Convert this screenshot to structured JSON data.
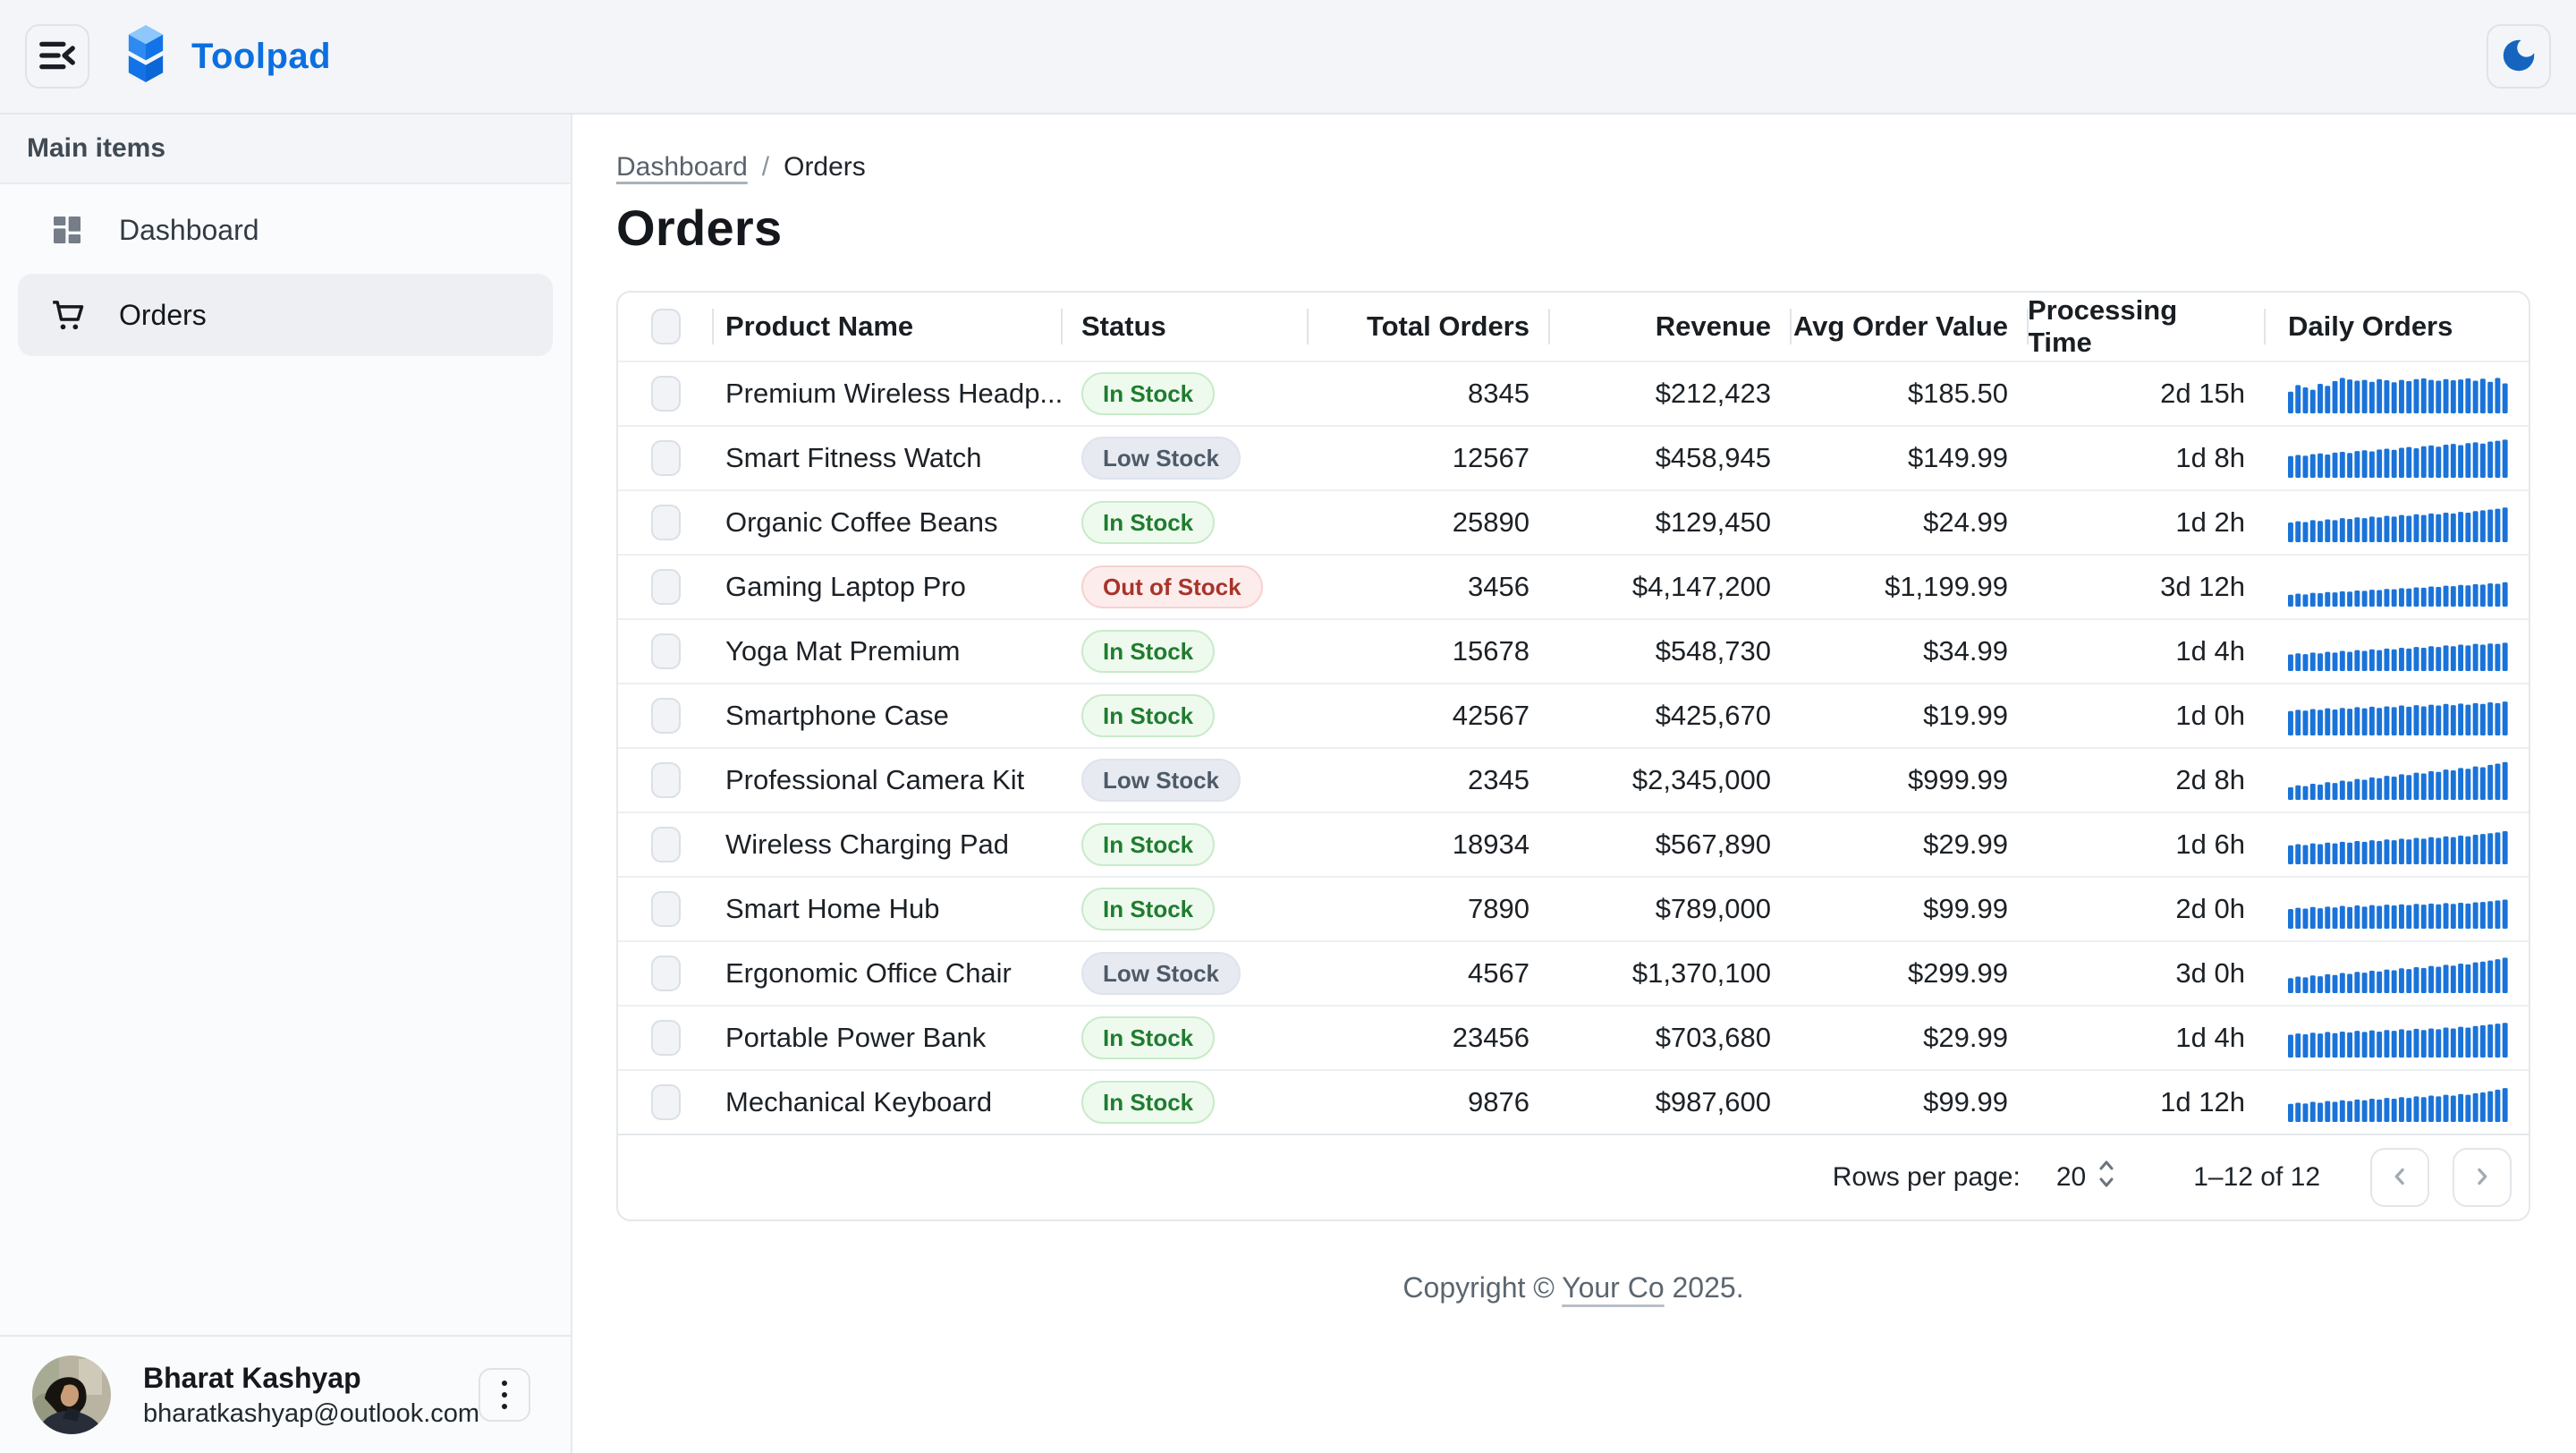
{
  "app": {
    "title": "Toolpad"
  },
  "header": {
    "menu_icon": "menu-collapse-icon",
    "theme_icon": "moon-icon"
  },
  "sidebar": {
    "section_label": "Main items",
    "items": [
      {
        "label": "Dashboard",
        "icon": "dashboard-icon",
        "selected": false
      },
      {
        "label": "Orders",
        "icon": "cart-icon",
        "selected": true
      }
    ],
    "user": {
      "name": "Bharat Kashyap",
      "email": "bharatkashyap@outlook.com"
    }
  },
  "breadcrumb": {
    "parent": "Dashboard",
    "separator": "/",
    "current": "Orders"
  },
  "page": {
    "title": "Orders"
  },
  "table": {
    "columns": [
      "Product Name",
      "Status",
      "Total Orders",
      "Revenue",
      "Avg Order Value",
      "Processing Time",
      "Daily Orders"
    ],
    "rows": [
      {
        "name": "Premium Wireless Headp...",
        "status": "In Stock",
        "status_variant": "success",
        "total_orders": "8345",
        "revenue": "$212,423",
        "avg_order_value": "$185.50",
        "processing_time": "2d 15h",
        "daily_orders": [
          55,
          72,
          66,
          60,
          75,
          70,
          82,
          90,
          86,
          83,
          85,
          80,
          87,
          84,
          79,
          85,
          82,
          87,
          89,
          85,
          83,
          87,
          84,
          86,
          89,
          83,
          88,
          80,
          90,
          76
        ]
      },
      {
        "name": "Smart Fitness Watch",
        "status": "Low Stock",
        "status_variant": "neutral",
        "total_orders": "12567",
        "revenue": "$458,945",
        "avg_order_value": "$149.99",
        "processing_time": "1d 8h",
        "daily_orders": [
          55,
          58,
          56,
          60,
          62,
          59,
          64,
          66,
          63,
          68,
          70,
          67,
          72,
          74,
          71,
          76,
          78,
          75,
          80,
          82,
          79,
          84,
          86,
          83,
          88,
          90,
          87,
          92,
          94,
          97
        ]
      },
      {
        "name": "Organic Coffee Beans",
        "status": "In Stock",
        "status_variant": "success",
        "total_orders": "25890",
        "revenue": "$129,450",
        "avg_order_value": "$24.99",
        "processing_time": "1d 2h",
        "daily_orders": [
          50,
          53,
          51,
          56,
          54,
          58,
          56,
          61,
          59,
          63,
          61,
          65,
          63,
          67,
          65,
          69,
          67,
          71,
          69,
          73,
          71,
          75,
          73,
          77,
          75,
          79,
          81,
          83,
          85,
          88
        ]
      },
      {
        "name": "Gaming Laptop Pro",
        "status": "Out of Stock",
        "status_variant": "error",
        "total_orders": "3456",
        "revenue": "$4,147,200",
        "avg_order_value": "$1,199.99",
        "processing_time": "3d 12h",
        "daily_orders": [
          30,
          33,
          31,
          35,
          34,
          37,
          36,
          39,
          38,
          41,
          40,
          43,
          42,
          45,
          44,
          47,
          46,
          49,
          48,
          51,
          50,
          53,
          52,
          55,
          54,
          57,
          56,
          59,
          58,
          62
        ]
      },
      {
        "name": "Yoga Mat Premium",
        "status": "In Stock",
        "status_variant": "success",
        "total_orders": "15678",
        "revenue": "$548,730",
        "avg_order_value": "$34.99",
        "processing_time": "1d 4h",
        "daily_orders": [
          42,
          45,
          43,
          47,
          45,
          49,
          47,
          51,
          49,
          53,
          51,
          55,
          53,
          57,
          55,
          59,
          57,
          61,
          59,
          63,
          61,
          65,
          63,
          67,
          65,
          69,
          67,
          70,
          69,
          72
        ]
      },
      {
        "name": "Smartphone Case",
        "status": "In Stock",
        "status_variant": "success",
        "total_orders": "42567",
        "revenue": "$425,670",
        "avg_order_value": "$19.99",
        "processing_time": "1d 0h",
        "daily_orders": [
          62,
          65,
          63,
          67,
          65,
          69,
          66,
          70,
          68,
          72,
          69,
          73,
          70,
          74,
          72,
          76,
          73,
          77,
          74,
          78,
          76,
          80,
          77,
          81,
          78,
          82,
          80,
          84,
          82,
          86
        ]
      },
      {
        "name": "Professional Camera Kit",
        "status": "Low Stock",
        "status_variant": "neutral",
        "total_orders": "2345",
        "revenue": "$2,345,000",
        "avg_order_value": "$999.99",
        "processing_time": "2d 8h",
        "daily_orders": [
          32,
          37,
          35,
          41,
          39,
          45,
          43,
          49,
          47,
          53,
          51,
          57,
          55,
          61,
          59,
          65,
          63,
          69,
          67,
          73,
          71,
          77,
          75,
          81,
          79,
          85,
          83,
          89,
          92,
          96
        ]
      },
      {
        "name": "Wireless Charging Pad",
        "status": "In Stock",
        "status_variant": "success",
        "total_orders": "18934",
        "revenue": "$567,890",
        "avg_order_value": "$29.99",
        "processing_time": "1d 6h",
        "daily_orders": [
          48,
          51,
          49,
          53,
          51,
          55,
          53,
          57,
          55,
          59,
          57,
          61,
          59,
          63,
          61,
          65,
          63,
          67,
          65,
          69,
          67,
          71,
          69,
          73,
          71,
          75,
          77,
          79,
          81,
          84
        ]
      },
      {
        "name": "Smart Home Hub",
        "status": "In Stock",
        "status_variant": "success",
        "total_orders": "7890",
        "revenue": "$789,000",
        "avg_order_value": "$99.99",
        "processing_time": "2d 0h",
        "daily_orders": [
          50,
          53,
          51,
          55,
          52,
          56,
          54,
          58,
          55,
          59,
          56,
          60,
          58,
          61,
          59,
          62,
          60,
          63,
          61,
          64,
          62,
          65,
          63,
          66,
          64,
          67,
          68,
          70,
          72,
          74
        ]
      },
      {
        "name": "Ergonomic Office Chair",
        "status": "Low Stock",
        "status_variant": "neutral",
        "total_orders": "4567",
        "revenue": "$1,370,100",
        "avg_order_value": "$299.99",
        "processing_time": "3d 0h",
        "daily_orders": [
          38,
          42,
          40,
          45,
          43,
          48,
          46,
          51,
          49,
          54,
          52,
          57,
          55,
          60,
          58,
          63,
          61,
          66,
          64,
          69,
          67,
          72,
          70,
          75,
          73,
          78,
          80,
          83,
          86,
          90
        ]
      },
      {
        "name": "Portable Power Bank",
        "status": "In Stock",
        "status_variant": "success",
        "total_orders": "23456",
        "revenue": "$703,680",
        "avg_order_value": "$29.99",
        "processing_time": "1d 4h",
        "daily_orders": [
          58,
          61,
          59,
          63,
          61,
          65,
          62,
          66,
          64,
          68,
          65,
          69,
          66,
          70,
          68,
          72,
          69,
          73,
          70,
          74,
          72,
          76,
          74,
          78,
          76,
          80,
          82,
          84,
          86,
          88
        ]
      },
      {
        "name": "Mechanical Keyboard",
        "status": "In Stock",
        "status_variant": "success",
        "total_orders": "9876",
        "revenue": "$987,600",
        "avg_order_value": "$99.99",
        "processing_time": "1d 12h",
        "daily_orders": [
          46,
          49,
          47,
          51,
          49,
          53,
          51,
          55,
          53,
          57,
          55,
          59,
          57,
          61,
          59,
          63,
          61,
          65,
          63,
          67,
          65,
          69,
          67,
          71,
          69,
          73,
          75,
          78,
          82,
          86
        ]
      }
    ],
    "pagination": {
      "rows_per_page_label": "Rows per page:",
      "rows_per_page": "20",
      "range": "1–12 of 12"
    }
  },
  "footer": {
    "prefix": "Copyright © ",
    "link": "Your Co",
    "suffix": " 2025."
  },
  "colors": {
    "brand": "#0b6fe0",
    "spark": "#1a73d9",
    "moon": "#1565c0",
    "success": "#1f7d2f",
    "neutral": "#4d5a68",
    "error": "#a8342a"
  }
}
